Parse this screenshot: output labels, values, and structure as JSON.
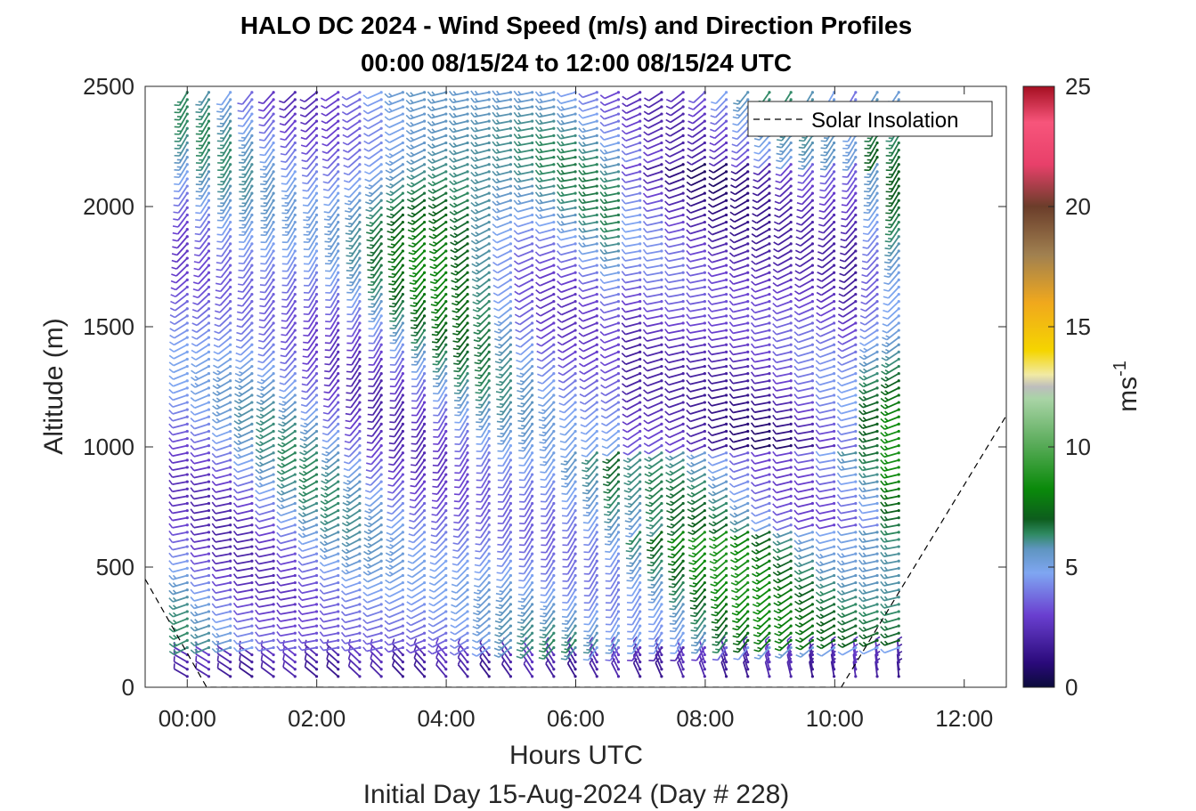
{
  "chart_data": {
    "type": "barb",
    "title": "HALO DC 2024 - Wind Speed (m/s) and Direction Profiles",
    "subtitle": "00:00 08/15/24 to 12:00 08/15/24  UTC",
    "xlabel": "Hours UTC",
    "ylabel": "Altitude (m)",
    "footer": "Initial Day 15-Aug-2024 (Day # 228)",
    "x_ticks": [
      "00:00",
      "02:00",
      "04:00",
      "06:00",
      "08:00",
      "10:00",
      "12:00"
    ],
    "x_tick_hours": [
      0,
      2,
      4,
      6,
      8,
      10,
      12
    ],
    "xlim_hours": [
      -0.65,
      12.65
    ],
    "y_ticks": [
      "0",
      "500",
      "1000",
      "1500",
      "2000",
      "2500"
    ],
    "y_tick_values": [
      0,
      500,
      1000,
      1500,
      2000,
      2500
    ],
    "ylim": [
      0,
      2500
    ],
    "colorbar": {
      "label_base": "ms",
      "label_exp": "-1",
      "range": [
        0,
        25
      ],
      "ticks": [
        "0",
        "5",
        "10",
        "15",
        "20",
        "25"
      ],
      "tick_values": [
        0,
        5,
        10,
        15,
        20,
        25
      ]
    },
    "legend": {
      "entries": [
        "Solar Insolation"
      ],
      "position": "top-right"
    },
    "barb_profiles": {
      "start_hour": 0.0,
      "step_hours": 0.333,
      "count": 34,
      "altitude_min": 45,
      "altitude_max": 2490,
      "altitude_step": 30
    },
    "solar_insolation": {
      "x_hours": [
        -0.65,
        0.3,
        10.1,
        12.65
      ],
      "y": [
        450,
        0,
        0,
        1130
      ]
    }
  }
}
